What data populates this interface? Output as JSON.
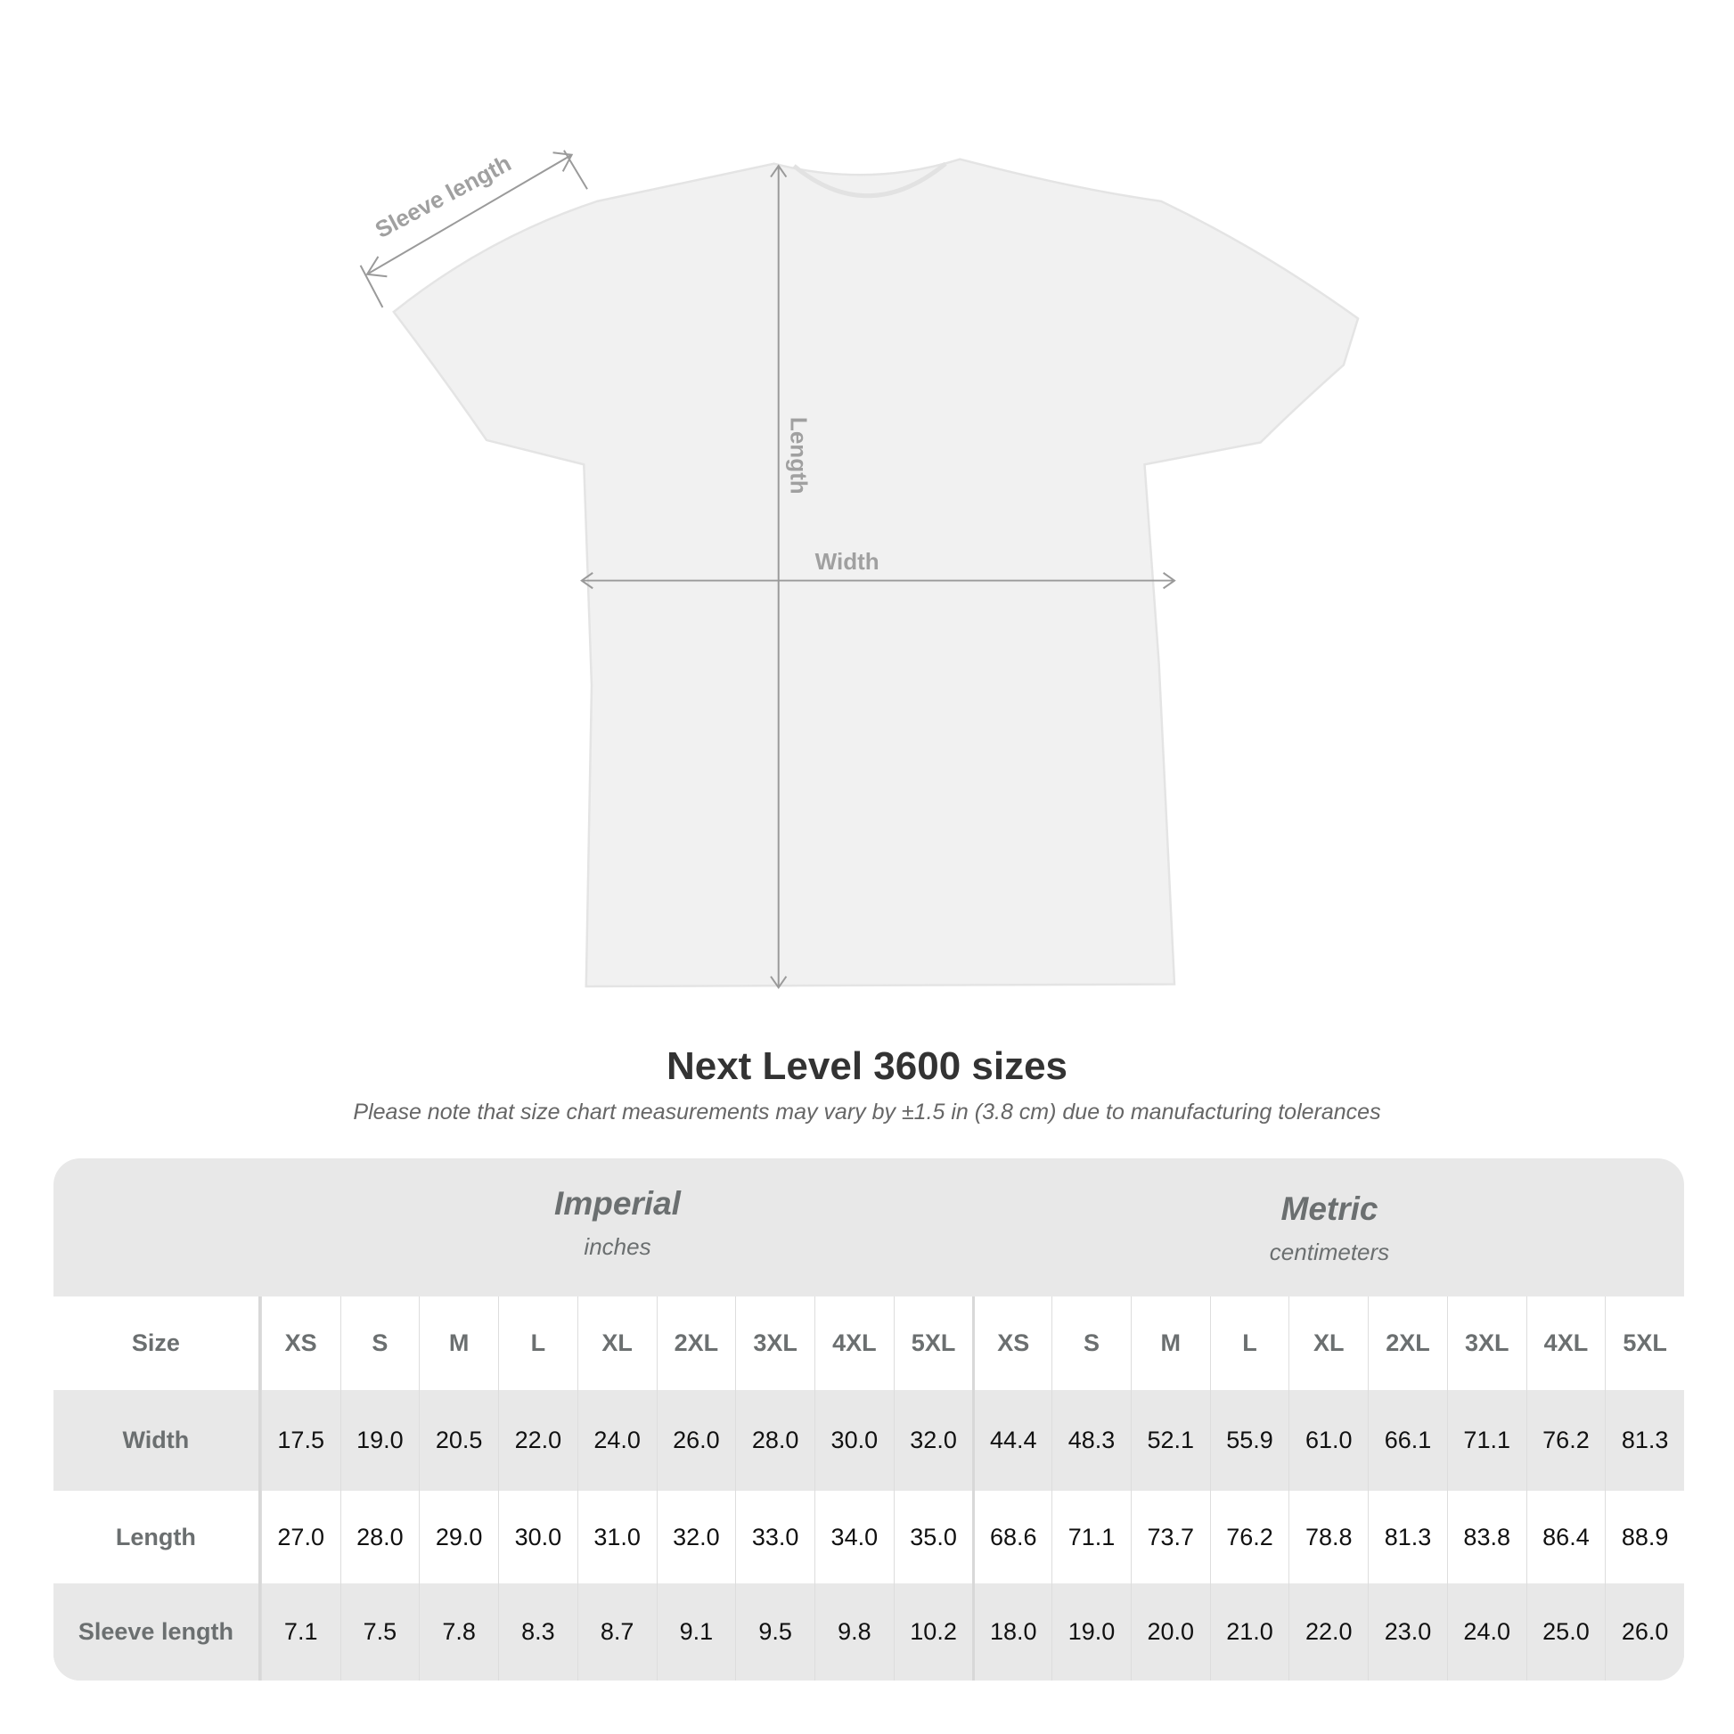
{
  "diagram": {
    "sleeve_label": "Sleeve length",
    "length_label": "Length",
    "width_label": "Width"
  },
  "title": "Next Level 3600 sizes",
  "subtitle": "Please note that size chart measurements may vary by ±1.5 in (3.8 cm) due to manufacturing tolerances",
  "table": {
    "imperial": {
      "label": "Imperial",
      "unit": "inches"
    },
    "metric": {
      "label": "Metric",
      "unit": "centimeters"
    },
    "size_label": "Size",
    "sizes": [
      "XS",
      "S",
      "M",
      "L",
      "XL",
      "2XL",
      "3XL",
      "4XL",
      "5XL"
    ],
    "rows": [
      {
        "label": "Width",
        "imperial": [
          "17.5",
          "19.0",
          "20.5",
          "22.0",
          "24.0",
          "26.0",
          "28.0",
          "30.0",
          "32.0"
        ],
        "metric": [
          "44.4",
          "48.3",
          "52.1",
          "55.9",
          "61.0",
          "66.1",
          "71.1",
          "76.2",
          "81.3"
        ]
      },
      {
        "label": "Length",
        "imperial": [
          "27.0",
          "28.0",
          "29.0",
          "30.0",
          "31.0",
          "32.0",
          "33.0",
          "34.0",
          "35.0"
        ],
        "metric": [
          "68.6",
          "71.1",
          "73.7",
          "76.2",
          "78.8",
          "81.3",
          "83.8",
          "86.4",
          "88.9"
        ]
      },
      {
        "label": "Sleeve length",
        "imperial": [
          "7.1",
          "7.5",
          "7.8",
          "8.3",
          "8.7",
          "9.1",
          "9.5",
          "9.8",
          "10.2"
        ],
        "metric": [
          "18.0",
          "19.0",
          "20.0",
          "21.0",
          "22.0",
          "23.0",
          "24.0",
          "25.0",
          "26.0"
        ]
      }
    ]
  }
}
